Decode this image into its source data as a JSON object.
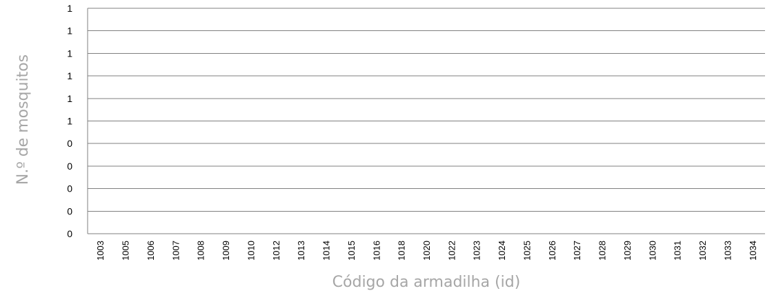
{
  "chart_data": {
    "type": "bar",
    "title": "",
    "xlabel": "Código da armadilha (id)",
    "ylabel": "N.º de mosquitos",
    "categories": [
      "1003",
      "1005",
      "1006",
      "1007",
      "1008",
      "1009",
      "1010",
      "1012",
      "1013",
      "1014",
      "1015",
      "1016",
      "1018",
      "1020",
      "1022",
      "1023",
      "1024",
      "1025",
      "1026",
      "1027",
      "1028",
      "1029",
      "1030",
      "1031",
      "1032",
      "1033",
      "1034"
    ],
    "series": [
      {
        "values": [
          0,
          0,
          0,
          0,
          0,
          0,
          0,
          0,
          0,
          0,
          0,
          0,
          0,
          0,
          0,
          0,
          0,
          0,
          0,
          0,
          0,
          0,
          0,
          0,
          0,
          0,
          0
        ]
      }
    ],
    "y_tick_labels": [
      "0",
      "0",
      "0",
      "0",
      "0",
      "1",
      "1",
      "1",
      "1",
      "1",
      "1"
    ],
    "ylim": [
      0,
      1
    ],
    "grid": true,
    "legend": "none",
    "colors": {
      "grid": "#7f7f7f",
      "axis_title": "#a6a6a6",
      "tick_text": "#000000"
    }
  }
}
